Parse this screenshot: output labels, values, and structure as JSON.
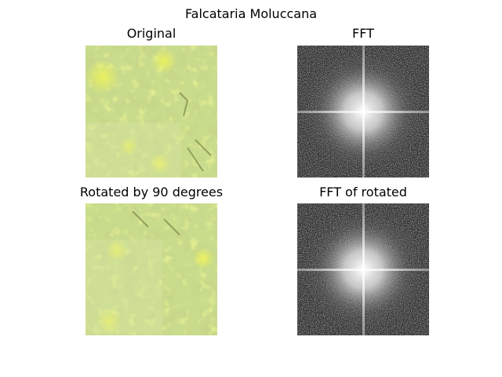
{
  "figure": {
    "title": "Falcataria Moluccana"
  },
  "panels": [
    {
      "title": "Original",
      "kind": "foliage-photo"
    },
    {
      "title": "FFT",
      "kind": "fft-spectrum"
    },
    {
      "title": "Rotated by 90 degrees",
      "kind": "foliage-photo-rotated"
    },
    {
      "title": "FFT of rotated",
      "kind": "fft-spectrum"
    }
  ],
  "colors": {
    "foliage_base": "#c9dc8c",
    "foliage_highlight": "#e8f24a",
    "foliage_shadow": "#7e9a4a",
    "fft_dark": "#2e2e2e",
    "fft_bright": "#ffffff"
  }
}
